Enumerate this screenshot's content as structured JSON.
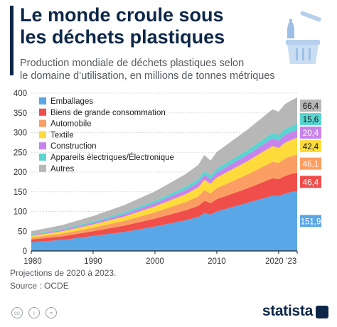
{
  "title_line1": "Le monde croule sous",
  "title_line2": "les déchets plastiques",
  "subtitle_line1": "Production mondiale de déchets plastiques selon",
  "subtitle_line2": "le domaine d’utilisation, en millions de tonnes métriques",
  "footnote": "Projections de 2020 à 2023.",
  "source": "Source : OCDE",
  "brand": "statista",
  "icons": [
    "trash-bin-icon",
    "creative-commons-icon",
    "attribution-icon",
    "no-derivatives-icon"
  ],
  "chart_data": {
    "type": "area",
    "stacked": true,
    "x": [
      1980,
      1985,
      1990,
      1995,
      2000,
      2005,
      2007,
      2008,
      2009,
      2010,
      2015,
      2019,
      2020,
      2021,
      2022,
      2023
    ],
    "x_ticks": [
      "1980",
      "1990",
      "2000",
      "2010",
      "2020",
      "’23"
    ],
    "y_ticks": [
      "0",
      "50",
      "100",
      "150",
      "200",
      "250",
      "300",
      "350",
      "400"
    ],
    "ylim": [
      0,
      400
    ],
    "grid": true,
    "legend_position": "top-left",
    "series": [
      {
        "name": "Emballages",
        "color": "#5aa7e8",
        "values": [
          22,
          28,
          38,
          48,
          62,
          78,
          86,
          96,
          92,
          100,
          122,
          140,
          139,
          145,
          149,
          151.9
        ]
      },
      {
        "name": "Biens de grande consommation",
        "color": "#f04e4a",
        "values": [
          7,
          9,
          12,
          16,
          20,
          25,
          28,
          31,
          29,
          31,
          37,
          44,
          43,
          45,
          46,
          46.4
        ]
      },
      {
        "name": "Automobile",
        "color": "#fb9e63",
        "values": [
          5,
          7,
          9,
          12,
          16,
          21,
          24,
          27,
          25,
          28,
          35,
          42,
          41,
          44,
          45,
          46.1
        ]
      },
      {
        "name": "Textile",
        "color": "#fcdb3b",
        "values": [
          4,
          6,
          8,
          11,
          15,
          20,
          23,
          26,
          24,
          27,
          34,
          40,
          38,
          40,
          41,
          42.4
        ]
      },
      {
        "name": "Construction",
        "color": "#c983ec",
        "values": [
          2,
          3,
          4,
          6,
          8,
          11,
          12,
          13,
          12,
          13,
          16,
          19,
          19,
          20,
          20,
          20.4
        ]
      },
      {
        "name": "Appareils électriques/Électronique",
        "color": "#5ad4d0",
        "values": [
          2,
          2.5,
          3.5,
          5,
          6,
          8,
          9,
          10,
          9,
          10,
          12,
          14,
          14,
          15,
          15,
          15.6
        ]
      },
      {
        "name": "Autres",
        "color": "#b7b7b7",
        "values": [
          8,
          10,
          14,
          18,
          24,
          32,
          36,
          40,
          38,
          42,
          52,
          60,
          59,
          63,
          65,
          66.4
        ]
      }
    ],
    "end_labels": [
      "151,9",
      "46,4",
      "46,1",
      "42,4",
      "20,4",
      "15,6",
      "66,4"
    ]
  }
}
